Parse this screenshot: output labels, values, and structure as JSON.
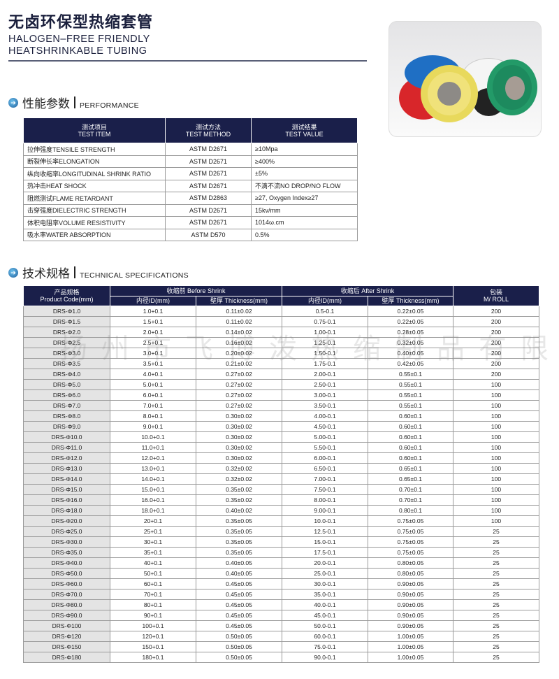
{
  "header": {
    "title_cn": "无卤环保型热缩套管",
    "title_en_1": "HALOGEN–FREE FRIENDLY",
    "title_en_2": "HEATSHRINKABLE TUBING"
  },
  "photo": {
    "colors": [
      "#d8262a",
      "#1f6fc4",
      "#f0e27a",
      "#f5f5f5",
      "#1d8a5e"
    ]
  },
  "performance": {
    "heading_cn": "性能参数",
    "heading_en": "PERFORMANCE",
    "columns": [
      [
        "测试项目",
        "TEST ITEM"
      ],
      [
        "测试方法",
        "TEST METHOD"
      ],
      [
        "测试结果",
        "TEST VALUE"
      ]
    ],
    "rows": [
      [
        "拉伸强度TENSILE STRENGTH",
        "ASTM D2671",
        "≥10Mpa"
      ],
      [
        "断裂伸长率ELONGATION",
        "ASTM D2671",
        "≥400%"
      ],
      [
        "纵向收缩率LONGITUDINAL SHRINK RATIO",
        "ASTM D2671",
        "±5%"
      ],
      [
        "热冲击HEAT SHOCK",
        "ASTM D2671",
        "不滴不流NO DROP/NO FLOW"
      ],
      [
        "阻燃测试FLAME RETARDANT",
        "ASTM D2863",
        "≥27, Oxygen Index≥27"
      ],
      [
        "击穿强度DIELECTRIC STRENGTH",
        "ASTM D2671",
        "15kv/mm"
      ],
      [
        "体积电阻率VOLUME RESISTIVITY",
        "ASTM D2671",
        "1014ω.cm"
      ],
      [
        "吸水率WATER ABSORPTION",
        "ASTM D570",
        "0.5%"
      ]
    ]
  },
  "specs": {
    "heading_cn": "技术规格",
    "heading_en": "TECHNICAL SPECIFICATIONS",
    "header": {
      "code_cn": "产品规格",
      "code_en": "Product Code(mm)",
      "before": "收缩前 Before Shrink",
      "after": "收缩后 After Shrink",
      "id": "内径ID(mm)",
      "thick": "壁厚 Thickness(mm)",
      "pack_cn": "包装",
      "pack_en": "M/ ROLL"
    },
    "rows": [
      [
        "DRS-Φ1.0",
        "1.0+0.1",
        "0.11±0.02",
        "0.5-0.1",
        "0.22±0.05",
        "200"
      ],
      [
        "DRS-Φ1.5",
        "1.5+0.1",
        "0.11±0.02",
        "0.75-0.1",
        "0.22±0.05",
        "200"
      ],
      [
        "DRS-Φ2.0",
        "2.0+0.1",
        "0.14±0.02",
        "1.00-0.1",
        "0.28±0.05",
        "200"
      ],
      [
        "DRS-Φ2.5",
        "2.5+0.1",
        "0.16±0.02",
        "1.25-0.1",
        "0.32±0.05",
        "200"
      ],
      [
        "DRS-Φ3.0",
        "3.0+0.1",
        "0.20±0.02",
        "1.50-0.1",
        "0.40±0.05",
        "200"
      ],
      [
        "DRS-Φ3.5",
        "3.5+0.1",
        "0.21±0.02",
        "1.75-0.1",
        "0.42±0.05",
        "200"
      ],
      [
        "DRS-Φ4.0",
        "4.0+0.1",
        "0.27±0.02",
        "2.00-0.1",
        "0.55±0.1",
        "200"
      ],
      [
        "DRS-Φ5.0",
        "5.0+0.1",
        "0.27±0.02",
        "2.50-0.1",
        "0.55±0.1",
        "100"
      ],
      [
        "DRS-Φ6.0",
        "6.0+0.1",
        "0.27±0.02",
        "3.00-0.1",
        "0.55±0.1",
        "100"
      ],
      [
        "DRS-Φ7.0",
        "7.0+0.1",
        "0.27±0.02",
        "3.50-0.1",
        "0.55±0.1",
        "100"
      ],
      [
        "DRS-Φ8.0",
        "8.0+0.1",
        "0.30±0.02",
        "4.00-0.1",
        "0.60±0.1",
        "100"
      ],
      [
        "DRS-Φ9.0",
        "9.0+0.1",
        "0.30±0.02",
        "4.50-0.1",
        "0.60±0.1",
        "100"
      ],
      [
        "DRS-Φ10.0",
        "10.0+0.1",
        "0.30±0.02",
        "5.00-0.1",
        "0.60±0.1",
        "100"
      ],
      [
        "DRS-Φ11.0",
        "11.0+0.1",
        "0.30±0.02",
        "5.50-0.1",
        "0.60±0.1",
        "100"
      ],
      [
        "DRS-Φ12.0",
        "12.0+0.1",
        "0.30±0.02",
        "6.00-0.1",
        "0.60±0.1",
        "100"
      ],
      [
        "DRS-Φ13.0",
        "13.0+0.1",
        "0.32±0.02",
        "6.50-0.1",
        "0.65±0.1",
        "100"
      ],
      [
        "DRS-Φ14.0",
        "14.0+0.1",
        "0.32±0.02",
        "7.00-0.1",
        "0.65±0.1",
        "100"
      ],
      [
        "DRS-Φ15.0",
        "15.0+0.1",
        "0.35±0.02",
        "7.50-0.1",
        "0.70±0.1",
        "100"
      ],
      [
        "DRS-Φ16.0",
        "16.0+0.1",
        "0.35±0.02",
        "8.00-0.1",
        "0.70±0.1",
        "100"
      ],
      [
        "DRS-Φ18.0",
        "18.0+0.1",
        "0.40±0.02",
        "9.00-0.1",
        "0.80±0.1",
        "100"
      ],
      [
        "DRS-Φ20.0",
        "20+0.1",
        "0.35±0.05",
        "10.0-0.1",
        "0.75±0.05",
        "100"
      ],
      [
        "DRS-Φ25.0",
        "25+0.1",
        "0.35±0.05",
        "12.5-0.1",
        "0.75±0.05",
        "25"
      ],
      [
        "DRS-Φ30.0",
        "30+0.1",
        "0.35±0.05",
        "15.0-0.1",
        "0.75±0.05",
        "25"
      ],
      [
        "DRS-Φ35.0",
        "35+0.1",
        "0.35±0.05",
        "17.5-0.1",
        "0.75±0.05",
        "25"
      ],
      [
        "DRS-Φ40.0",
        "40+0.1",
        "0.40±0.05",
        "20.0-0.1",
        "0.80±0.05",
        "25"
      ],
      [
        "DRS-Φ50.0",
        "50+0.1",
        "0.40±0.05",
        "25.0-0.1",
        "0.80±0.05",
        "25"
      ],
      [
        "DRS-Φ60.0",
        "60+0.1",
        "0.45±0.05",
        "30.0-0.1",
        "0.90±0.05",
        "25"
      ],
      [
        "DRS-Φ70.0",
        "70+0.1",
        "0.45±0.05",
        "35.0-0.1",
        "0.90±0.05",
        "25"
      ],
      [
        "DRS-Φ80.0",
        "80+0.1",
        "0.45±0.05",
        "40.0-0.1",
        "0.90±0.05",
        "25"
      ],
      [
        "DRS-Φ90.0",
        "90+0.1",
        "0.45±0.05",
        "45.0-0.1",
        "0.90±0.05",
        "25"
      ],
      [
        "DRS-Φ100",
        "100+0.1",
        "0.45±0.05",
        "50.0-0.1",
        "0.90±0.05",
        "25"
      ],
      [
        "DRS-Φ120",
        "120+0.1",
        "0.50±0.05",
        "60.0-0.1",
        "1.00±0.05",
        "25"
      ],
      [
        "DRS-Φ150",
        "150+0.1",
        "0.50±0.05",
        "75.0-0.1",
        "1.00±0.05",
        "25"
      ],
      [
        "DRS-Φ180",
        "180+0.1",
        "0.50±0.05",
        "90.0-0.1",
        "1.00±0.05",
        "25"
      ]
    ]
  },
  "watermark": "扬州市飞博泼热缩制品有限公司"
}
